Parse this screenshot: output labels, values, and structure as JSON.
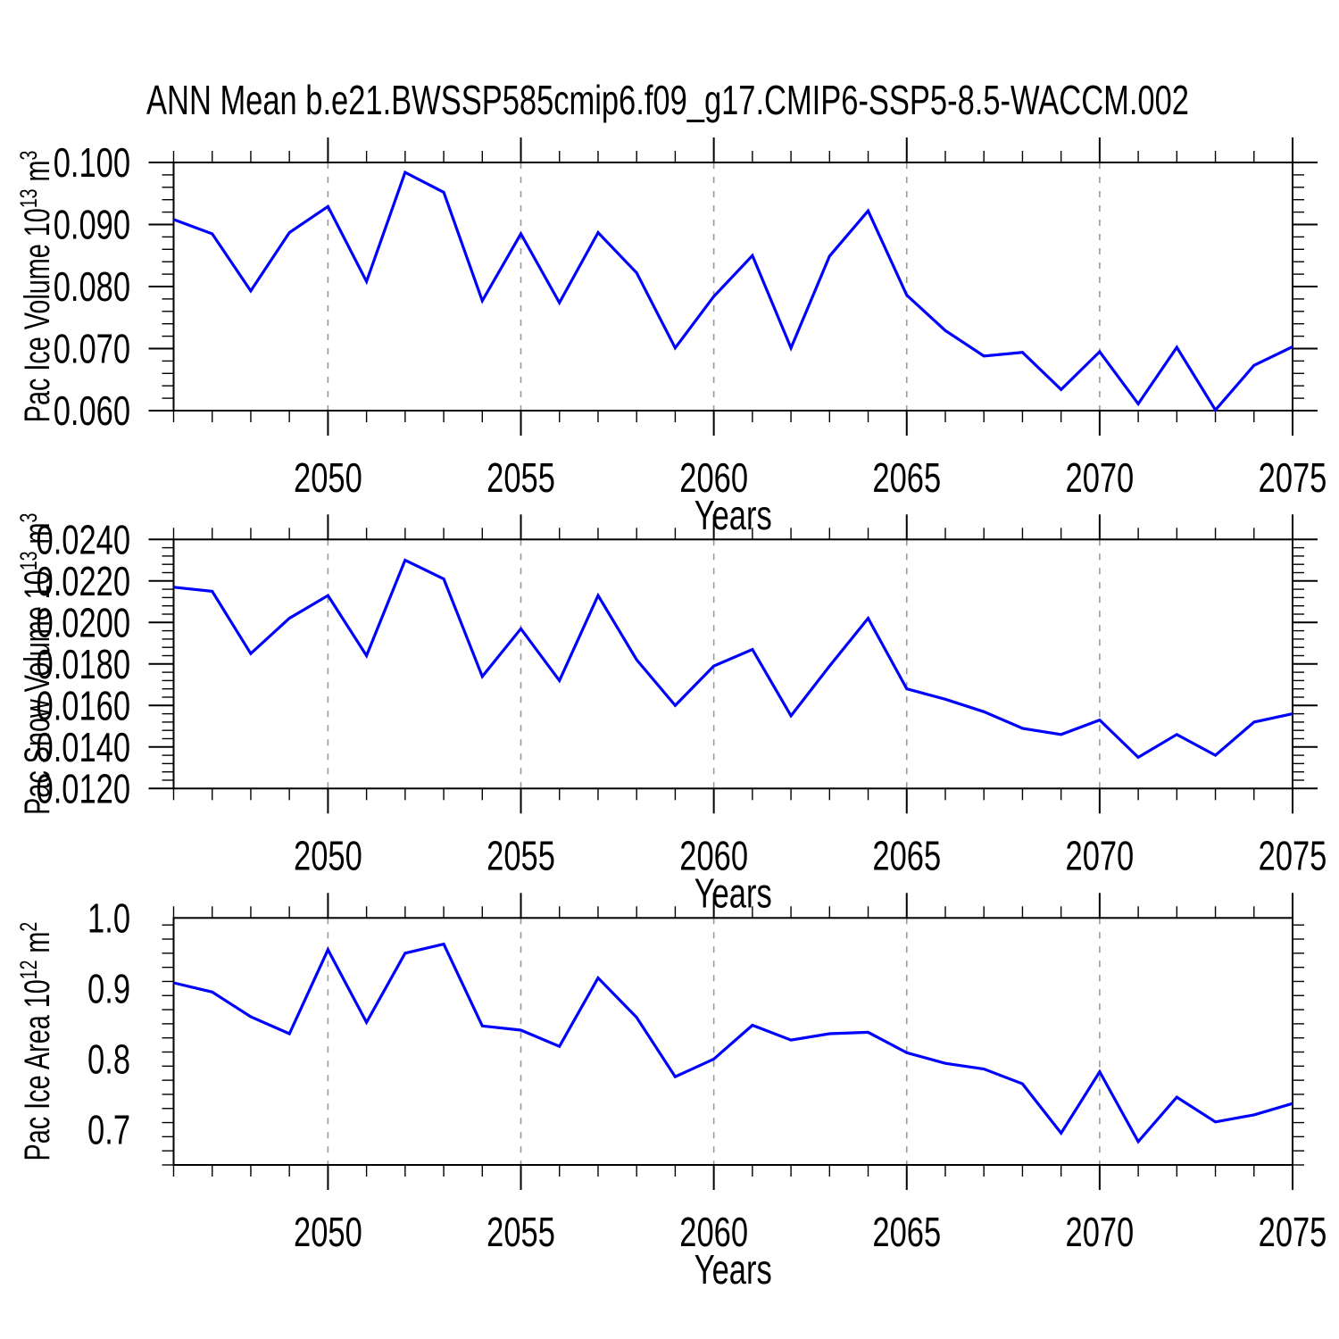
{
  "title": "ANN Mean b.e21.BWSSP585cmip6.f09_g17.CMIP6-SSP5-8.5-WACCM.002",
  "figure": {
    "background": "#ffffff",
    "axis_color": "#000000",
    "line_color": "#0000ff",
    "grid_color": "#999999"
  },
  "x_axis": {
    "label": "Years",
    "range": [
      2046,
      2075
    ],
    "major_tick_labels": [
      "2050",
      "2055",
      "2060",
      "2065",
      "2070",
      "2075"
    ],
    "major_tick_values": [
      2050,
      2055,
      2060,
      2065,
      2070,
      2075
    ],
    "minor_step": 1,
    "grid_years": [
      2050,
      2055,
      2060,
      2065,
      2070
    ]
  },
  "years": [
    2046,
    2047,
    2048,
    2049,
    2050,
    2051,
    2052,
    2053,
    2054,
    2055,
    2056,
    2057,
    2058,
    2059,
    2060,
    2061,
    2062,
    2063,
    2064,
    2065,
    2066,
    2067,
    2068,
    2069,
    2070,
    2071,
    2072,
    2073,
    2074,
    2075
  ],
  "chart_data": [
    {
      "type": "line",
      "name": "pac-ice-volume",
      "ylabel": "Pac Ice Volume 10^13 m^3",
      "ylabel_parts": [
        {
          "t": "Pac Ice Volume 10"
        },
        {
          "sup": "13"
        },
        {
          "t": " m"
        },
        {
          "sup": "3"
        }
      ],
      "xlabel": "Years",
      "ylim": [
        0.06,
        0.1
      ],
      "ytick_labels": [
        "0.060",
        "0.070",
        "0.080",
        "0.090",
        "0.100"
      ],
      "ytick_values": [
        0.06,
        0.07,
        0.08,
        0.09,
        0.1
      ],
      "y_minor_step": 0.002,
      "values": [
        0.0908,
        0.0885,
        0.0793,
        0.0887,
        0.0929,
        0.0808,
        0.0984,
        0.0952,
        0.0777,
        0.0885,
        0.0774,
        0.0887,
        0.0822,
        0.0701,
        0.0784,
        0.085,
        0.0701,
        0.0849,
        0.0922,
        0.0786,
        0.0729,
        0.0688,
        0.0694,
        0.0634,
        0.0695,
        0.0611,
        0.0702,
        0.0601,
        0.0673,
        0.0703
      ]
    },
    {
      "type": "line",
      "name": "pac-snow-volume",
      "ylabel": "Pac Snow Volume 10^13 m^3",
      "ylabel_parts": [
        {
          "t": "Pac Snow Volume 10"
        },
        {
          "sup": "13"
        },
        {
          "t": " m"
        },
        {
          "sup": "3"
        }
      ],
      "xlabel": "Years",
      "ylim": [
        0.012,
        0.024
      ],
      "ytick_labels": [
        "0.0120",
        "0.0140",
        "0.0160",
        "0.0180",
        "0.0200",
        "0.0220",
        "0.0240"
      ],
      "ytick_values": [
        0.012,
        0.014,
        0.016,
        0.018,
        0.02,
        0.022,
        0.024
      ],
      "y_minor_step": 0.0004,
      "values": [
        0.0217,
        0.0215,
        0.0185,
        0.0202,
        0.0213,
        0.0184,
        0.023,
        0.0221,
        0.0174,
        0.0197,
        0.0172,
        0.0213,
        0.0182,
        0.016,
        0.0179,
        0.0187,
        0.0155,
        0.0179,
        0.0202,
        0.0168,
        0.0163,
        0.0157,
        0.0149,
        0.0146,
        0.0153,
        0.0135,
        0.0146,
        0.0136,
        0.0152,
        0.0156
      ]
    },
    {
      "type": "line",
      "name": "pac-ice-area",
      "ylabel": "Pac Ice Area 10^12 m^2",
      "ylabel_parts": [
        {
          "t": "Pac Ice Area 10"
        },
        {
          "sup": "12"
        },
        {
          "t": " m"
        },
        {
          "sup": "2"
        }
      ],
      "xlabel": "Years",
      "ylim": [
        0.65,
        1.0
      ],
      "ytick_labels": [
        "0.7",
        "0.8",
        "0.9",
        "1.0"
      ],
      "ytick_values": [
        0.7,
        0.8,
        0.9,
        1.0
      ],
      "y_minor_step": 0.02,
      "values": [
        0.908,
        0.895,
        0.86,
        0.836,
        0.955,
        0.852,
        0.95,
        0.963,
        0.847,
        0.841,
        0.818,
        0.915,
        0.859,
        0.775,
        0.8,
        0.848,
        0.827,
        0.836,
        0.838,
        0.809,
        0.794,
        0.786,
        0.765,
        0.695,
        0.782,
        0.683,
        0.746,
        0.711,
        0.721,
        0.737
      ]
    }
  ]
}
